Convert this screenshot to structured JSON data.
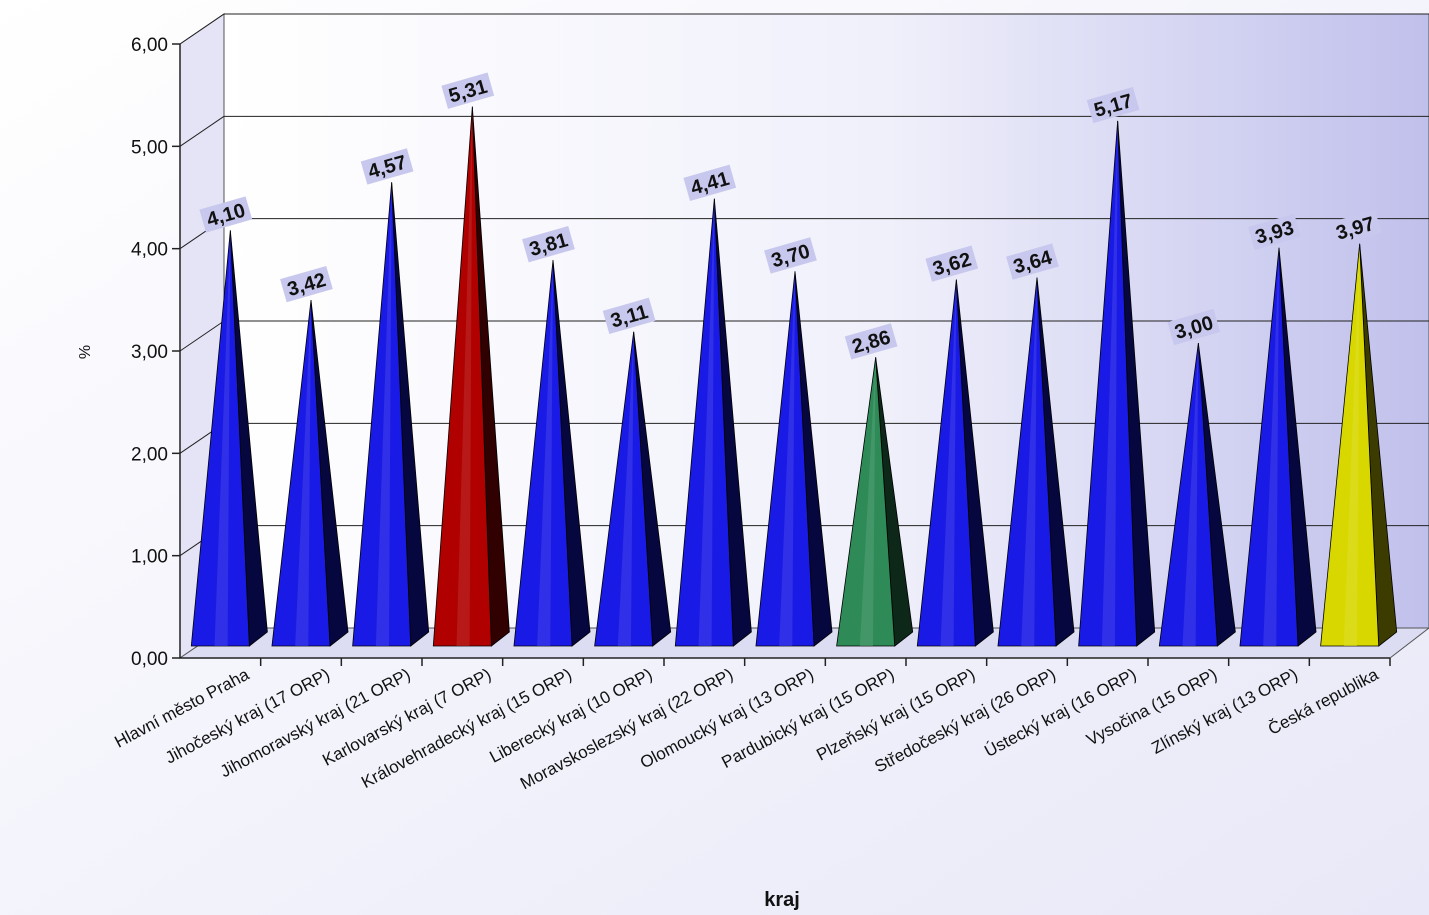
{
  "chart_data": {
    "type": "bar",
    "title": "",
    "xlabel": "kraj",
    "ylabel": "%",
    "ylim": [
      0,
      6
    ],
    "yticks": [
      0,
      1,
      2,
      3,
      4,
      5,
      6
    ],
    "ytick_labels": [
      "0,00",
      "1,00",
      "2,00",
      "3,00",
      "4,00",
      "5,00",
      "6,00"
    ],
    "grid": true,
    "legend": "none",
    "categories": [
      "Hlavní město Praha",
      "Jihočeský kraj (17 ORP)",
      "Jihomoravský kraj (21 ORP)",
      "Karlovarský kraj (7 ORP)",
      "Královehradecký kraj (15 ORP)",
      "Liberecký kraj (10 ORP)",
      "Moravskoslezský kraj (22 ORP)",
      "Olomoucký kraj (13 ORP)",
      "Pardubický kraj (15 ORP)",
      "Plzeňský kraj (15 ORP)",
      "Středočeský kraj (26 ORP)",
      "Ústecký kraj (16 ORP)",
      "Vysočina (15 ORP)",
      "Zlínský kraj (13 ORP)",
      "Česká republika"
    ],
    "values": [
      4.1,
      3.42,
      4.57,
      5.31,
      3.81,
      3.11,
      4.41,
      3.7,
      2.86,
      3.62,
      3.64,
      5.17,
      3.0,
      3.93,
      3.97
    ],
    "value_labels": [
      "4,10",
      "3,42",
      "4,57",
      "5,31",
      "3,81",
      "3,11",
      "4,41",
      "3,70",
      "2,86",
      "3,62",
      "3,64",
      "5,17",
      "3,00",
      "3,93",
      "3,97"
    ],
    "bar_colors": [
      "#1a1ae6",
      "#1a1ae6",
      "#1a1ae6",
      "#b00000",
      "#1a1ae6",
      "#1a1ae6",
      "#1a1ae6",
      "#1a1ae6",
      "#2e8b57",
      "#1a1ae6",
      "#1a1ae6",
      "#1a1ae6",
      "#1a1ae6",
      "#1a1ae6",
      "#d8d800"
    ],
    "background_color": "#e8e8f8",
    "label_box_color": "#c8c8ee"
  }
}
